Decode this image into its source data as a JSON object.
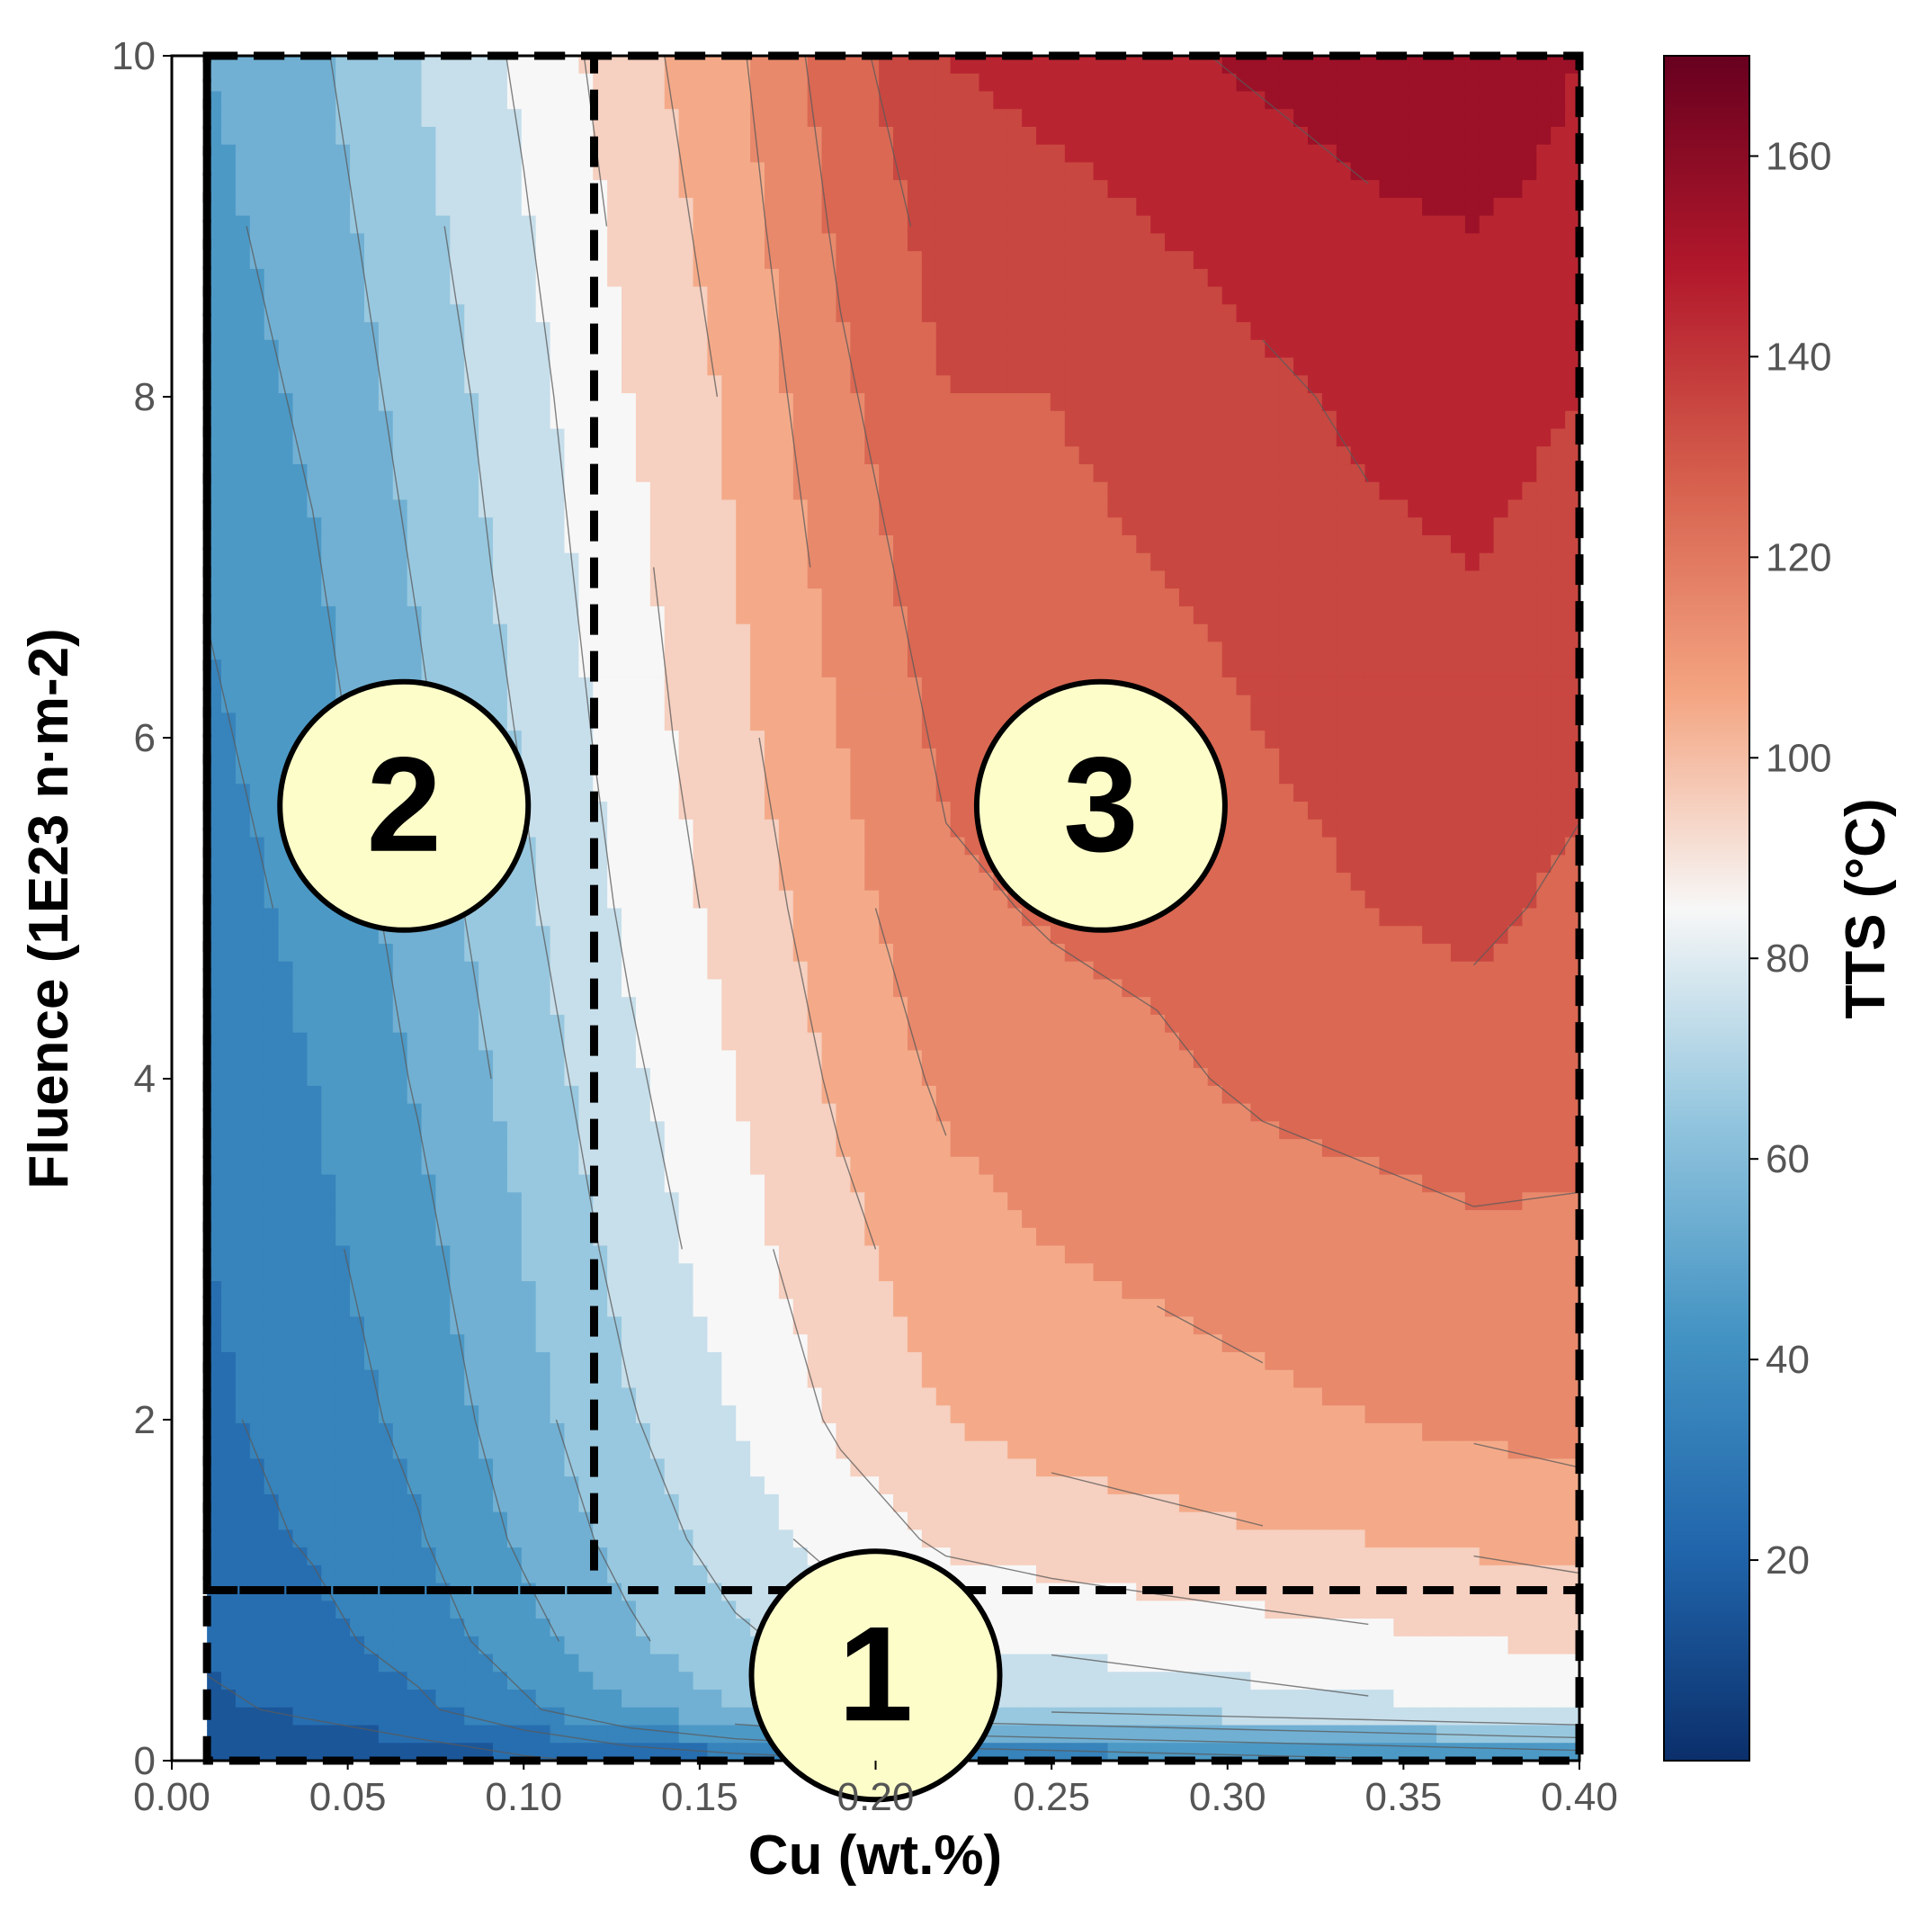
{
  "chart_data": {
    "type": "heatmap",
    "subtype": "filled-contour",
    "title": "",
    "xlabel": "Cu (wt.%)",
    "ylabel": "Fluence (1E23 n·m-2)",
    "xlim": [
      0.0,
      0.4
    ],
    "ylim": [
      0,
      10
    ],
    "xticks": [
      "0.00",
      "0.05",
      "0.10",
      "0.15",
      "0.20",
      "0.25",
      "0.30",
      "0.35",
      "0.40"
    ],
    "yticks": [
      "0",
      "2",
      "4",
      "6",
      "8",
      "10"
    ],
    "colorbar": {
      "label": "TTS (°C)",
      "colormap": "RdBu_r",
      "range": [
        0,
        170
      ],
      "ticks": [
        "20",
        "40",
        "60",
        "80",
        "100",
        "120",
        "140",
        "160"
      ],
      "colors": [
        "#0b2f6b",
        "#2166ac",
        "#4393c3",
        "#92c5de",
        "#f7f7f7",
        "#f4a582",
        "#d6604d",
        "#b2182b",
        "#67001f"
      ]
    },
    "x": [
      0.01,
      0.04,
      0.07,
      0.1,
      0.13,
      0.16,
      0.19,
      0.22,
      0.25,
      0.28,
      0.31,
      0.34,
      0.37,
      0.4
    ],
    "y": [
      0.0,
      0.3,
      0.7,
      1.3,
      2.0,
      3.0,
      4.0,
      5.0,
      6.0,
      7.0,
      8.0,
      9.0,
      10.0
    ],
    "z": [
      [
        10,
        12,
        14,
        18,
        22,
        25,
        28,
        30,
        32,
        34,
        36,
        38,
        40,
        42
      ],
      [
        18,
        22,
        28,
        38,
        50,
        60,
        66,
        70,
        72,
        74,
        76,
        78,
        80,
        82
      ],
      [
        22,
        27,
        34,
        46,
        58,
        68,
        74,
        80,
        82,
        84,
        86,
        88,
        90,
        92
      ],
      [
        26,
        31,
        39,
        52,
        64,
        75,
        84,
        92,
        95,
        97,
        99,
        100,
        102,
        104
      ],
      [
        28,
        34,
        43,
        56,
        69,
        80,
        92,
        100,
        104,
        106,
        108,
        110,
        112,
        114
      ],
      [
        30,
        37,
        47,
        60,
        74,
        86,
        97,
        106,
        110,
        112,
        114,
        116,
        118,
        118
      ],
      [
        33,
        40,
        51,
        64,
        78,
        90,
        102,
        112,
        116,
        118,
        122,
        124,
        126,
        124
      ],
      [
        35,
        43,
        54,
        68,
        82,
        94,
        106,
        118,
        121,
        123,
        126,
        130,
        132,
        128
      ],
      [
        38,
        46,
        58,
        71,
        85,
        97,
        110,
        122,
        124,
        126,
        130,
        134,
        136,
        132
      ],
      [
        41,
        49,
        61,
        74,
        87,
        100,
        114,
        126,
        127,
        130,
        133,
        138,
        140,
        136
      ],
      [
        44,
        52,
        64,
        76,
        90,
        102,
        118,
        130,
        130,
        134,
        138,
        142,
        144,
        140
      ],
      [
        47,
        55,
        67,
        79,
        93,
        105,
        122,
        134,
        136,
        140,
        144,
        148,
        150,
        146
      ],
      [
        50,
        58,
        70,
        82,
        96,
        108,
        126,
        140,
        144,
        148,
        152,
        156,
        160,
        150
      ]
    ],
    "contour_levels": [
      10,
      20,
      30,
      40,
      50,
      60,
      70,
      80,
      90,
      100,
      110,
      120,
      130,
      140,
      150,
      160
    ],
    "annotations": [
      {
        "label": "1",
        "x": 0.2,
        "y": 0.5
      },
      {
        "label": "2",
        "x": 0.066,
        "y": 5.6
      },
      {
        "label": "3",
        "x": 0.264,
        "y": 5.6
      }
    ],
    "regions": [
      {
        "x0": 0.01,
        "x1": 0.4,
        "y0": 0,
        "y1": 10
      },
      {
        "x0": 0.01,
        "x1": 0.12,
        "y0": 1.0,
        "y1": 10
      },
      {
        "x0": 0.01,
        "x1": 0.4,
        "y0": 1.0,
        "y1": 1.0
      }
    ]
  }
}
